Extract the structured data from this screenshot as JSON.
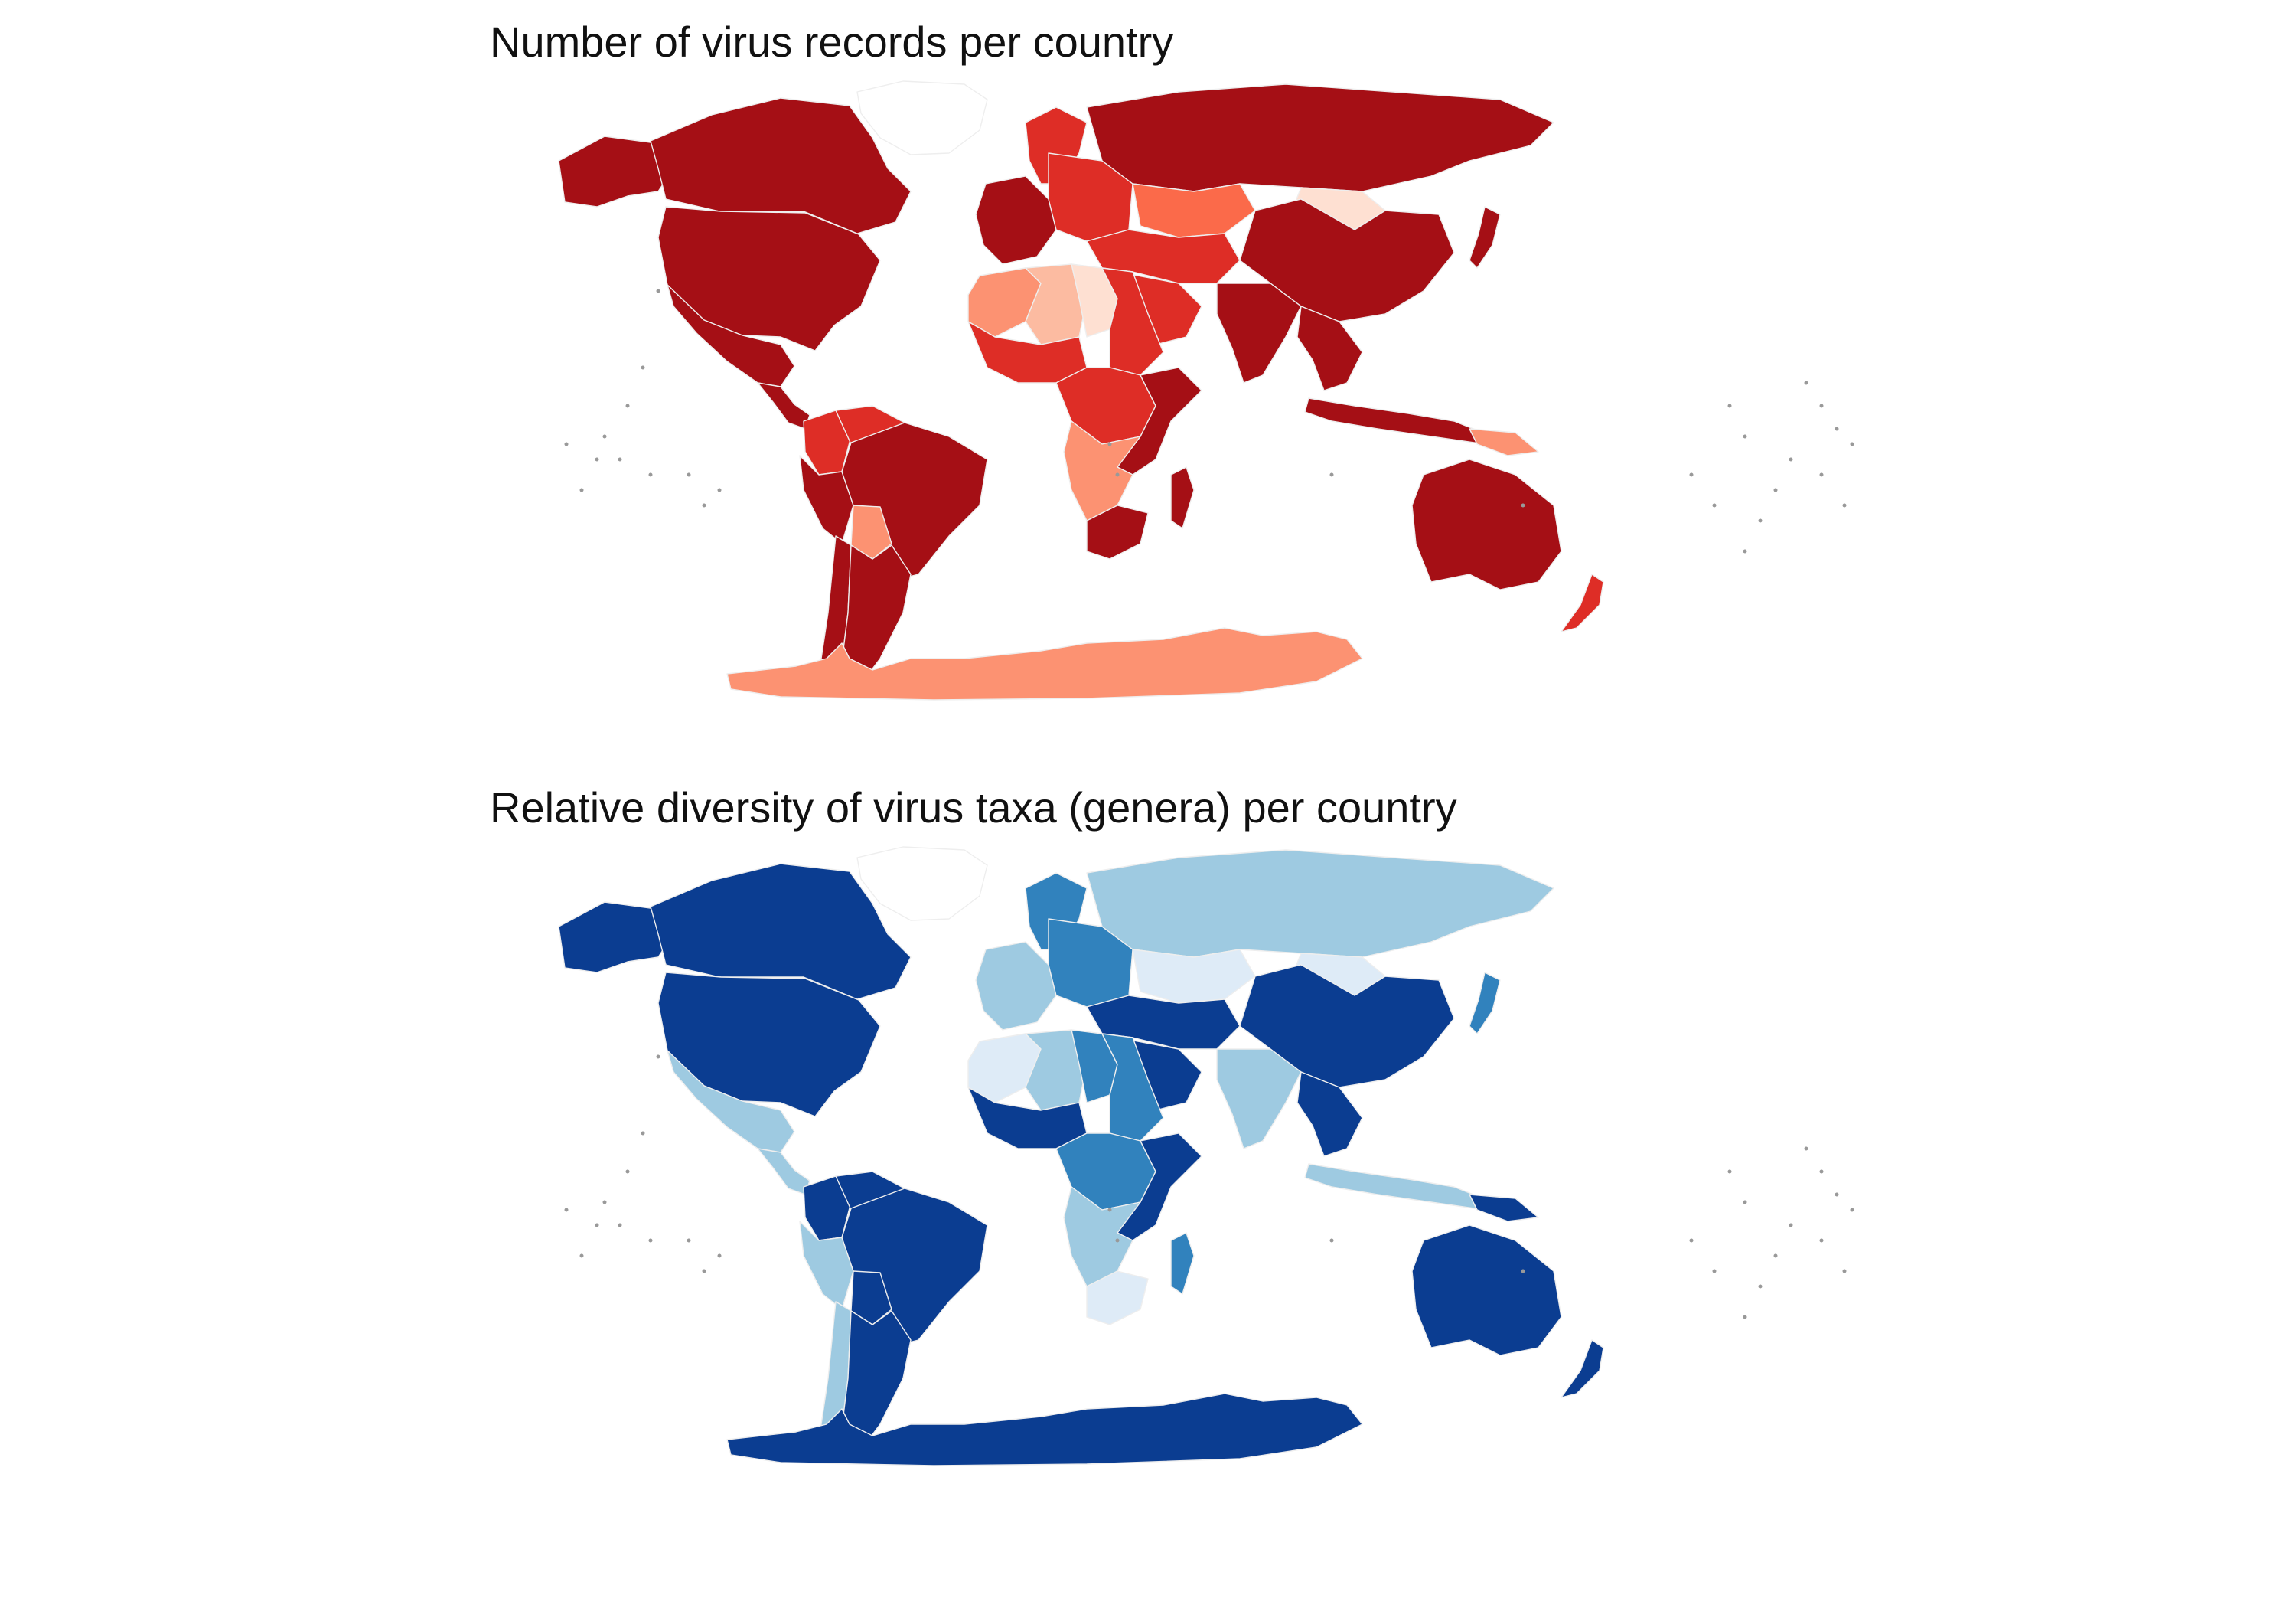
{
  "maps": [
    {
      "title": "Number of virus records per country",
      "palette": {
        "max": "#a50f15",
        "high": "#de2d26",
        "mid": "#fb6a4a",
        "low": "#fc9272",
        "min": "#fcbba1",
        "none": "#fee0d2",
        "islet": "#999999"
      },
      "regions": {
        "canada": "max",
        "usa": "max",
        "alaska": "max",
        "mexico": "max",
        "central_america": "max",
        "colombia": "high",
        "venezuela": "high",
        "brazil": "max",
        "peru": "max",
        "bolivia": "low",
        "argentina": "max",
        "chile": "max",
        "scandinavia": "high",
        "w_europe": "max",
        "e_europe": "high",
        "russia": "max",
        "kazakhstan": "mid",
        "mongolia": "none",
        "china": "max",
        "middle_east": "high",
        "arabia": "high",
        "india": "max",
        "se_asia": "max",
        "japan": "max",
        "indonesia": "max",
        "png": "low",
        "australia": "max",
        "new_zealand": "high",
        "nw_africa": "low",
        "sahara_w": "min",
        "sahara_e": "none",
        "egypt_sudan": "high",
        "w_africa": "high",
        "central_africa": "high",
        "e_africa": "max",
        "s_africa_mid": "low",
        "south_africa": "max",
        "madagascar": "max",
        "antarctica": "low"
      }
    },
    {
      "title": "Relative diversity of virus taxa (genera) per country",
      "palette": {
        "max": "#08519c",
        "high": "#0b3d91",
        "mid": "#3182bd",
        "low": "#6baed6",
        "min": "#9ecae1",
        "none": "#deebf7",
        "islet": "#999999"
      },
      "regions": {
        "canada": "high",
        "usa": "high",
        "alaska": "high",
        "mexico": "min",
        "central_america": "min",
        "colombia": "high",
        "venezuela": "high",
        "brazil": "high",
        "peru": "min",
        "bolivia": "high",
        "argentina": "high",
        "chile": "min",
        "scandinavia": "mid",
        "w_europe": "min",
        "e_europe": "mid",
        "russia": "min",
        "kazakhstan": "none",
        "mongolia": "none",
        "china": "high",
        "middle_east": "high",
        "arabia": "high",
        "india": "min",
        "se_asia": "high",
        "japan": "mid",
        "indonesia": "min",
        "png": "high",
        "australia": "high",
        "new_zealand": "high",
        "nw_africa": "none",
        "sahara_w": "min",
        "sahara_e": "mid",
        "egypt_sudan": "mid",
        "w_africa": "high",
        "central_africa": "mid",
        "e_africa": "high",
        "s_africa_mid": "min",
        "south_africa": "none",
        "madagascar": "mid",
        "antarctica": "high"
      }
    }
  ]
}
